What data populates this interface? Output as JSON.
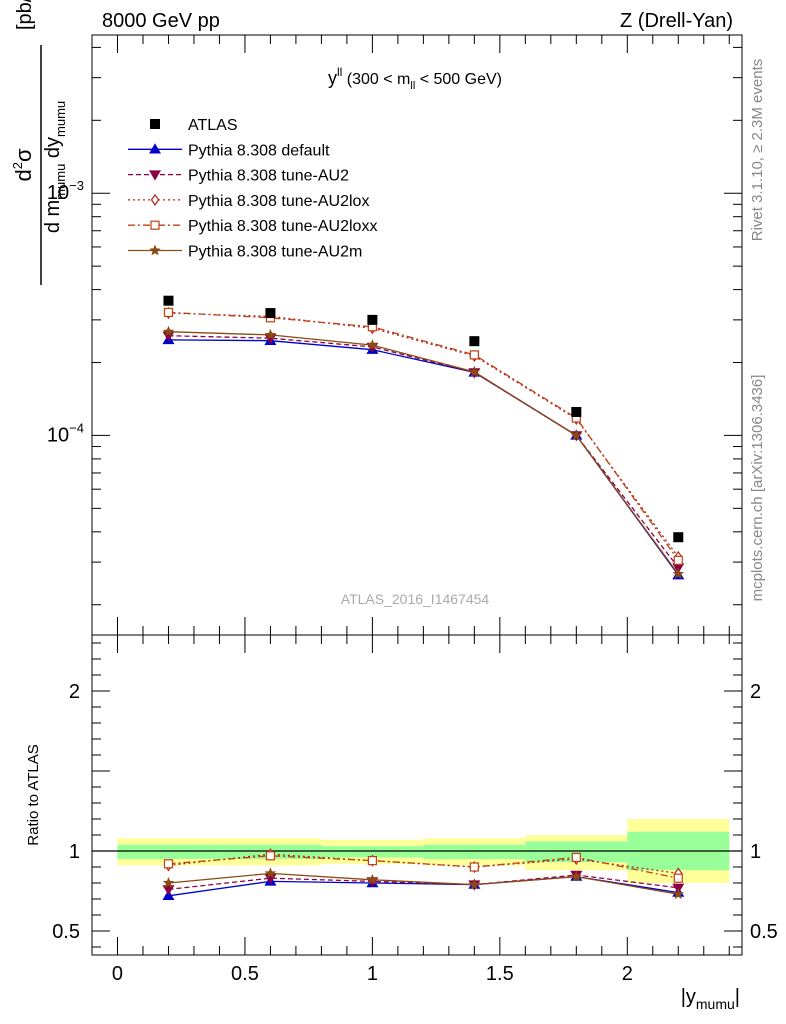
{
  "header": {
    "left": "8000 GeV pp",
    "right": "Z (Drell-Yan)"
  },
  "side_labels": {
    "rivet": "Rivet 3.1.10, ≥ 2.3M events",
    "mcplots": "mcplots.cern.ch [arXiv:1306.3436]"
  },
  "watermark": "ATLAS_2016_I1467454",
  "plot_title": {
    "main": "y",
    "main_sup": "ll",
    "range_open": " (300 < m",
    "range_sub": "ll",
    "range_close": " < 500 GeV)"
  },
  "y_axis_label": {
    "numer_d": "d",
    "numer_sup": "2",
    "numer_sigma": "σ",
    "denom_d1": "d m",
    "denom_sub1": "mumu",
    "denom_d2": " dy",
    "denom_sub2": "mumu",
    "unit": "[pb/GeV]"
  },
  "x_axis_label": {
    "open": "|y",
    "sub": "mumu",
    "close": "|"
  },
  "ratio_label": "Ratio to ATLAS",
  "colors": {
    "data": "#000000",
    "default": "#0000cc",
    "au2": "#8b0045",
    "au2lox": "#b22222",
    "au2loxx": "#c04010",
    "au2m": "#8b4a10",
    "band_inner": "#99ff99",
    "band_outer": "#ffff99"
  },
  "chart_data": {
    "type": "line",
    "x": [
      0.2,
      0.6,
      1.0,
      1.4,
      1.8,
      2.2
    ],
    "bins": [
      [
        0.0,
        0.4
      ],
      [
        0.4,
        0.8
      ],
      [
        0.8,
        1.2
      ],
      [
        1.2,
        1.6
      ],
      [
        1.6,
        2.0
      ],
      [
        2.0,
        2.4
      ]
    ],
    "main": {
      "yscale": "log",
      "xlim": [
        -0.1,
        2.45
      ],
      "ylim": [
        1.5e-05,
        0.0045
      ],
      "ticks": [
        {
          "value": 0.0001,
          "base": "10",
          "exp": "−4"
        },
        {
          "value": 0.001,
          "base": "10",
          "exp": "−3"
        }
      ]
    },
    "ratio": {
      "ylim": [
        0.35,
        2.35
      ],
      "ticks": [
        {
          "value": 0.5,
          "label": "0.5"
        },
        {
          "value": 1,
          "label": "1"
        },
        {
          "value": 2,
          "label": "2"
        }
      ],
      "band_inner": [
        [
          0.95,
          1.04
        ],
        [
          0.95,
          1.04
        ],
        [
          0.96,
          1.03
        ],
        [
          0.95,
          1.04
        ],
        [
          0.93,
          1.06
        ],
        [
          0.88,
          1.12
        ]
      ],
      "band_outer": [
        [
          0.91,
          1.08
        ],
        [
          0.91,
          1.08
        ],
        [
          0.92,
          1.07
        ],
        [
          0.91,
          1.08
        ],
        [
          0.88,
          1.1
        ],
        [
          0.8,
          1.2
        ]
      ]
    },
    "x_ticks": [
      {
        "value": 0,
        "label": "0"
      },
      {
        "value": 0.5,
        "label": "0.5"
      },
      {
        "value": 1,
        "label": "1"
      },
      {
        "value": 1.5,
        "label": "1.5"
      },
      {
        "value": 2,
        "label": "2"
      }
    ],
    "data": {
      "name": "ATLAS",
      "values": [
        0.00036,
        0.00032,
        0.0003,
        0.000245,
        0.000125,
        3.8e-05
      ]
    },
    "series": [
      {
        "name": "Pythia 8.308 default",
        "key": "default",
        "dash": "",
        "marker": "triangle-up",
        "values": [
          0.000248,
          0.000246,
          0.000226,
          0.000182,
          0.0001,
          2.65e-05
        ],
        "ratio": [
          0.72,
          0.81,
          0.8,
          0.79,
          0.84,
          0.74
        ]
      },
      {
        "name": "Pythia 8.308 tune-AU2",
        "key": "au2",
        "dash": "5,3",
        "marker": "triangle-down",
        "values": [
          0.000258,
          0.000252,
          0.000232,
          0.000182,
          0.0001,
          2.85e-05
        ],
        "ratio": [
          0.76,
          0.83,
          0.81,
          0.79,
          0.85,
          0.77
        ]
      },
      {
        "name": "Pythia 8.308 tune-AU2lox",
        "key": "au2lox",
        "dash": "2,3",
        "marker": "diamond",
        "values": [
          0.00032,
          0.00031,
          0.000277,
          0.000213,
          0.000117,
          3.15e-05
        ],
        "ratio": [
          0.91,
          0.98,
          0.94,
          0.9,
          0.95,
          0.86
        ]
      },
      {
        "name": "Pythia 8.308 tune-AU2loxx",
        "key": "au2loxx",
        "dash": "7,3,2,3",
        "marker": "square",
        "values": [
          0.000322,
          0.000306,
          0.000281,
          0.000215,
          0.000118,
          3.05e-05
        ],
        "ratio": [
          0.92,
          0.97,
          0.94,
          0.9,
          0.96,
          0.83
        ]
      },
      {
        "name": "Pythia 8.308 tune-AU2m",
        "key": "au2m",
        "dash": "",
        "marker": "star",
        "values": [
          0.000268,
          0.00026,
          0.000236,
          0.000183,
          0.0001,
          2.68e-05
        ],
        "ratio": [
          0.8,
          0.86,
          0.82,
          0.79,
          0.84,
          0.73
        ]
      }
    ]
  }
}
